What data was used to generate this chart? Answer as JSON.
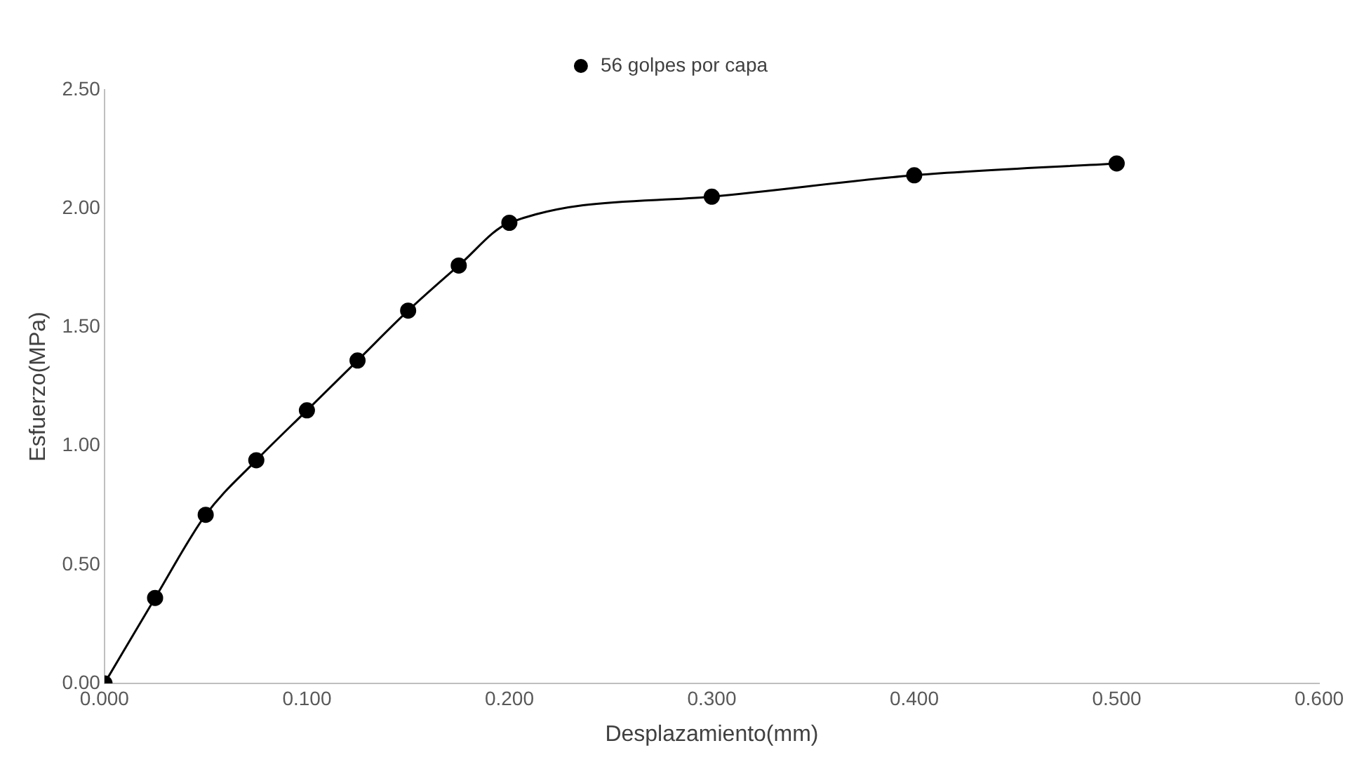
{
  "chart_data": {
    "type": "line",
    "xlabel": "Desplazamiento(mm)",
    "ylabel": "Esfuerzo(MPa)",
    "x": [
      0,
      0.025,
      0.05,
      0.075,
      0.1,
      0.125,
      0.15,
      0.175,
      0.2,
      0.3,
      0.4,
      0.5
    ],
    "series": [
      {
        "name": "56 golpes por capa",
        "color": "#000000",
        "values": [
          0,
          0.36,
          0.71,
          0.94,
          1.15,
          1.36,
          1.57,
          1.76,
          1.94,
          2.05,
          2.14,
          2.19
        ]
      }
    ],
    "xlim": [
      0,
      0.6
    ],
    "xticks": [
      {
        "value": 0,
        "label": "0.000"
      },
      {
        "value": 0.1,
        "label": "0.100"
      },
      {
        "value": 0.2,
        "label": "0.200"
      },
      {
        "value": 0.3,
        "label": "0.300"
      },
      {
        "value": 0.4,
        "label": "0.400"
      },
      {
        "value": 0.5,
        "label": "0.500"
      },
      {
        "value": 0.6,
        "label": "0.600"
      }
    ],
    "ylim": [
      0,
      2.5
    ],
    "yticks": [
      {
        "value": 0,
        "label": "0.00"
      },
      {
        "value": 0.5,
        "label": "0.50"
      },
      {
        "value": 1,
        "label": "1.00"
      },
      {
        "value": 1.5,
        "label": "1.50"
      },
      {
        "value": 2,
        "label": "2.00"
      },
      {
        "value": 2.5,
        "label": "2.50"
      }
    ],
    "grid": false,
    "legend": "top",
    "marker": "circle",
    "line_style": "solid"
  }
}
